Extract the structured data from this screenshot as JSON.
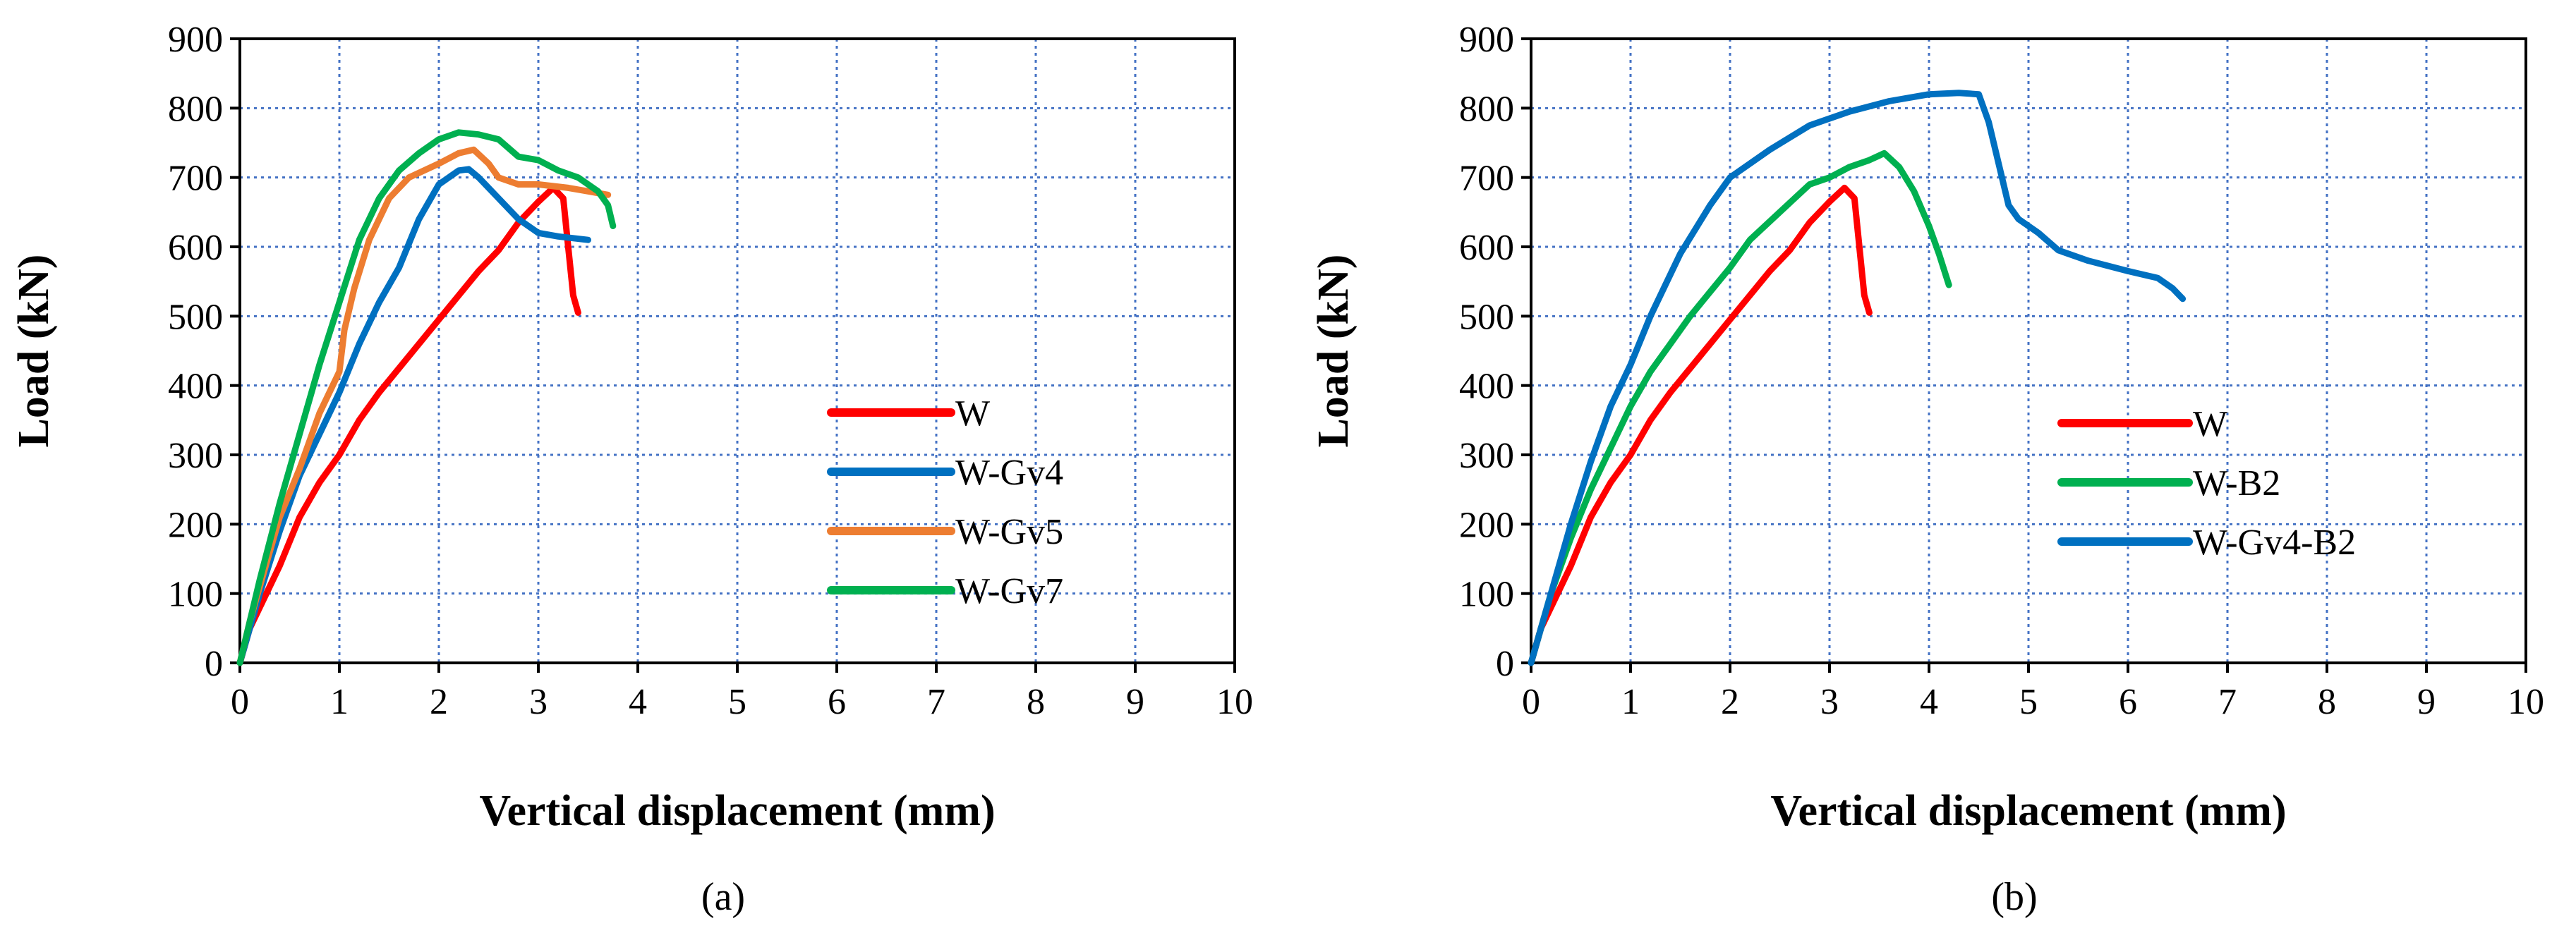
{
  "chart_data": [
    {
      "type": "line",
      "panel_label": "(a)",
      "title": "",
      "xlabel": "Vertical displacement (mm)",
      "ylabel": "Load (kN)",
      "xlim": [
        0,
        10
      ],
      "ylim": [
        0,
        900
      ],
      "xticks": [
        0,
        1,
        2,
        3,
        4,
        5,
        6,
        7,
        8,
        9,
        10
      ],
      "yticks": [
        0,
        100,
        200,
        300,
        400,
        500,
        600,
        700,
        800,
        900
      ],
      "grid": true,
      "legend_position": "center-right",
      "series": [
        {
          "name": "W",
          "color": "#FF0000",
          "x": [
            0,
            0.1,
            0.2,
            0.4,
            0.6,
            0.8,
            1.0,
            1.2,
            1.4,
            1.6,
            1.8,
            2.0,
            2.2,
            2.4,
            2.6,
            2.8,
            3.0,
            3.15,
            3.25,
            3.3,
            3.35,
            3.4
          ],
          "y": [
            0,
            50,
            80,
            140,
            210,
            260,
            300,
            350,
            390,
            425,
            460,
            495,
            530,
            565,
            595,
            635,
            665,
            685,
            670,
            600,
            530,
            505
          ]
        },
        {
          "name": "W-Gv4",
          "color": "#0070C0",
          "x": [
            0,
            0.1,
            0.2,
            0.4,
            0.6,
            0.8,
            1.0,
            1.2,
            1.4,
            1.6,
            1.8,
            2.0,
            2.2,
            2.3,
            2.4,
            2.6,
            2.8,
            3.0,
            3.2,
            3.5
          ],
          "y": [
            0,
            50,
            100,
            190,
            270,
            330,
            390,
            460,
            520,
            570,
            640,
            690,
            710,
            712,
            700,
            670,
            640,
            620,
            615,
            610
          ]
        },
        {
          "name": "W-Gv5",
          "color": "#ED7D31",
          "x": [
            0,
            0.1,
            0.2,
            0.4,
            0.6,
            0.8,
            1.0,
            1.05,
            1.15,
            1.3,
            1.5,
            1.7,
            2.0,
            2.2,
            2.35,
            2.5,
            2.6,
            2.8,
            3.0,
            3.3,
            3.5,
            3.7
          ],
          "y": [
            0,
            60,
            110,
            210,
            280,
            360,
            420,
            480,
            540,
            610,
            670,
            700,
            720,
            735,
            740,
            720,
            700,
            690,
            690,
            685,
            680,
            675
          ]
        },
        {
          "name": "W-Gv7",
          "color": "#00B050",
          "x": [
            0,
            0.1,
            0.2,
            0.4,
            0.6,
            0.8,
            1.0,
            1.2,
            1.4,
            1.6,
            1.8,
            2.0,
            2.2,
            2.4,
            2.6,
            2.8,
            3.0,
            3.2,
            3.4,
            3.6,
            3.7,
            3.75
          ],
          "y": [
            0,
            60,
            120,
            230,
            330,
            430,
            520,
            610,
            670,
            710,
            735,
            755,
            765,
            762,
            755,
            730,
            725,
            710,
            700,
            680,
            660,
            630
          ]
        }
      ]
    },
    {
      "type": "line",
      "panel_label": "(b)",
      "title": "",
      "xlabel": "Vertical displacement (mm)",
      "ylabel": "Load (kN)",
      "xlim": [
        0,
        10
      ],
      "ylim": [
        0,
        900
      ],
      "xticks": [
        0,
        1,
        2,
        3,
        4,
        5,
        6,
        7,
        8,
        9,
        10
      ],
      "yticks": [
        0,
        100,
        200,
        300,
        400,
        500,
        600,
        700,
        800,
        900
      ],
      "grid": true,
      "legend_position": "center-right",
      "series": [
        {
          "name": "W",
          "color": "#FF0000",
          "x": [
            0,
            0.1,
            0.2,
            0.4,
            0.6,
            0.8,
            1.0,
            1.2,
            1.4,
            1.6,
            1.8,
            2.0,
            2.2,
            2.4,
            2.6,
            2.8,
            3.0,
            3.15,
            3.25,
            3.3,
            3.35,
            3.4
          ],
          "y": [
            0,
            50,
            80,
            140,
            210,
            260,
            300,
            350,
            390,
            425,
            460,
            495,
            530,
            565,
            595,
            635,
            665,
            685,
            670,
            600,
            530,
            505
          ]
        },
        {
          "name": "W-B2",
          "color": "#00B050",
          "x": [
            0,
            0.1,
            0.2,
            0.4,
            0.6,
            0.8,
            1.0,
            1.2,
            1.4,
            1.6,
            1.8,
            2.0,
            2.2,
            2.5,
            2.8,
            3.0,
            3.2,
            3.4,
            3.55,
            3.7,
            3.85,
            4.0,
            4.1,
            4.2
          ],
          "y": [
            0,
            50,
            100,
            180,
            250,
            310,
            370,
            420,
            460,
            500,
            535,
            570,
            610,
            650,
            690,
            700,
            715,
            725,
            735,
            715,
            680,
            630,
            590,
            545
          ]
        },
        {
          "name": "W-Gv4-B2",
          "color": "#0070C0",
          "x": [
            0,
            0.1,
            0.2,
            0.3,
            0.4,
            0.6,
            0.8,
            1.0,
            1.2,
            1.5,
            1.8,
            2.0,
            2.4,
            2.8,
            3.2,
            3.6,
            4.0,
            4.3,
            4.5,
            4.6,
            4.7,
            4.8,
            4.9,
            5.1,
            5.3,
            5.6,
            6.0,
            6.3,
            6.45,
            6.55
          ],
          "y": [
            0,
            50,
            100,
            150,
            200,
            290,
            370,
            430,
            500,
            590,
            660,
            700,
            740,
            775,
            795,
            810,
            820,
            822,
            820,
            780,
            720,
            660,
            640,
            620,
            595,
            580,
            565,
            555,
            540,
            525
          ]
        }
      ]
    }
  ]
}
